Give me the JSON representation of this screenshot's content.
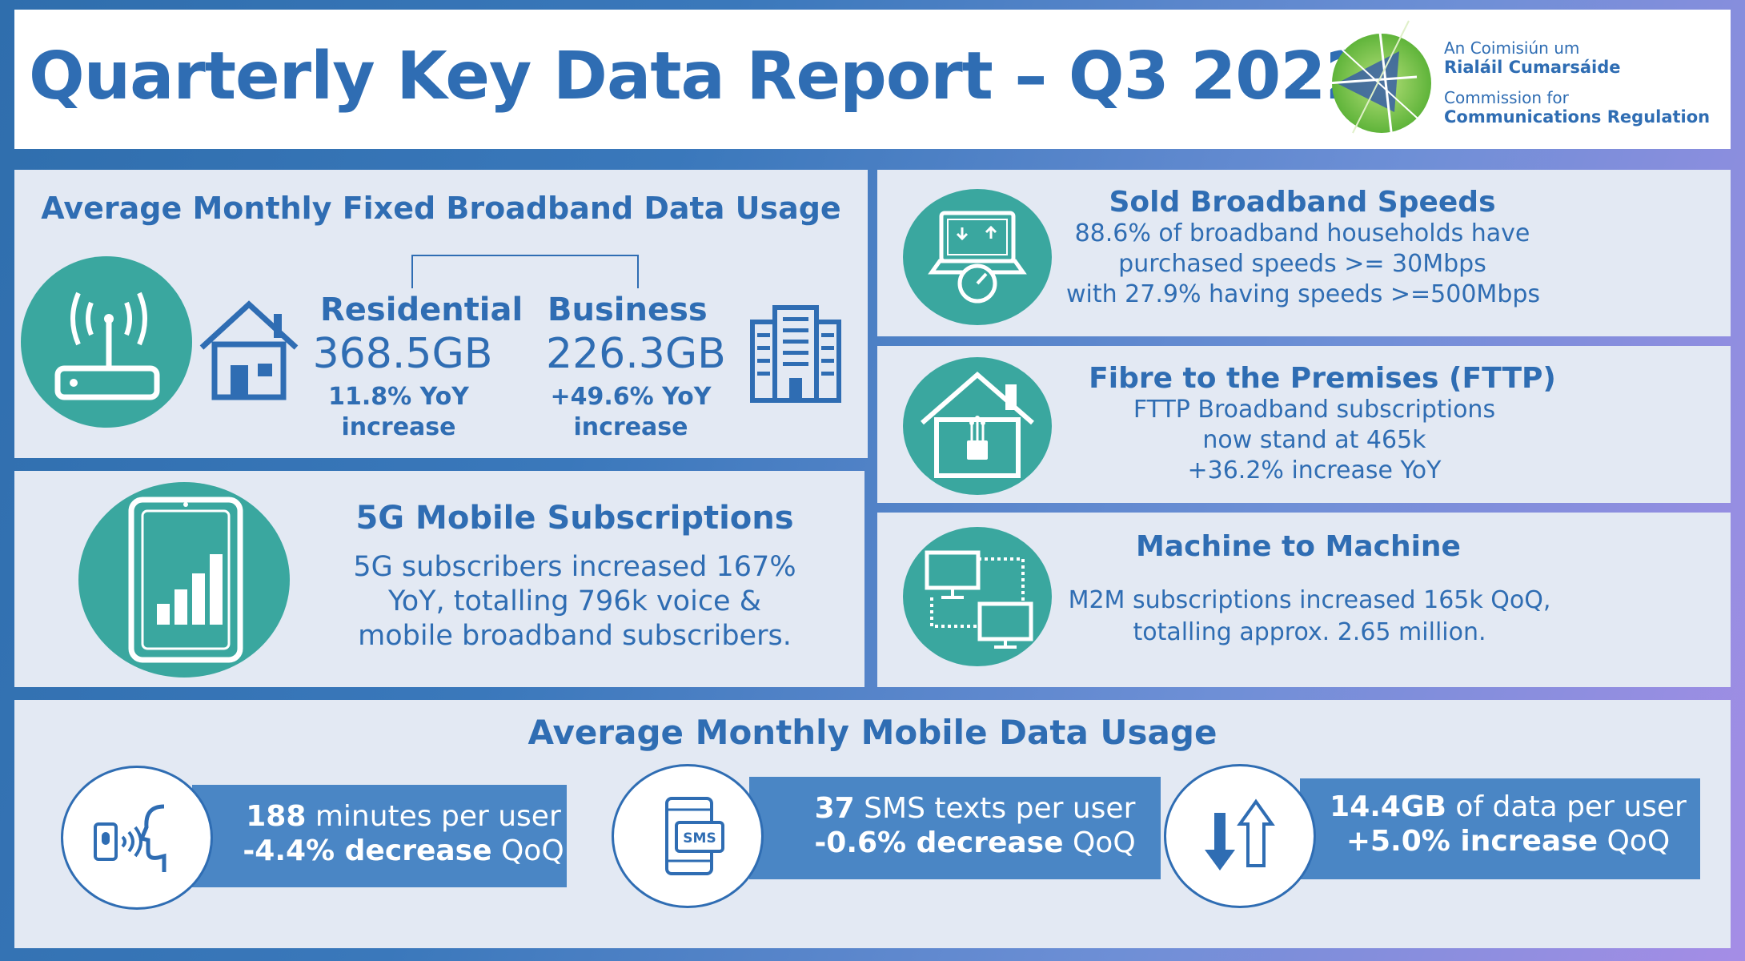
{
  "header": {
    "title": "Quarterly Key Data Report – Q3 2022",
    "logo": {
      "line1": "An Coimisiún um",
      "line2": "Rialáil Cumarsáide",
      "line3": "Commission for",
      "line4": "Communications Regulation"
    }
  },
  "fixed_broadband": {
    "title": "Average Monthly Fixed Broadband Data Usage",
    "residential": {
      "label": "Residential",
      "value": "368.5GB",
      "change_line1": "11.8% YoY",
      "change_line2": "increase"
    },
    "business": {
      "label": "Business",
      "value": "226.3GB",
      "change_line1": "+49.6% YoY",
      "change_line2": "increase"
    }
  },
  "mobile_5g": {
    "title": "5G Mobile Subscriptions",
    "line1": "5G subscribers increased 167%",
    "line2": "YoY, totalling 796k voice &",
    "line3": "mobile broadband subscribers."
  },
  "sold_speeds": {
    "title": "Sold Broadband Speeds",
    "line1": "88.6% of broadband households have",
    "line2": "purchased speeds >= 30Mbps",
    "line3": "with 27.9% having speeds >=500Mbps"
  },
  "fttp": {
    "title": "Fibre to the Premises (FTTP)",
    "line1": "FTTP Broadband subscriptions",
    "line2": "now stand at 465k",
    "line3": "+36.2% increase YoY"
  },
  "m2m": {
    "title": "Machine to Machine",
    "line1": "M2M subscriptions increased 165k QoQ,",
    "line2": "totalling approx. 2.65 million."
  },
  "mobile_usage": {
    "title": "Average Monthly Mobile Data Usage",
    "minutes": {
      "value": "188",
      "label": "minutes per user",
      "change": "-4.4% decrease",
      "period": "QoQ"
    },
    "sms": {
      "value": "37",
      "label": "SMS texts per user",
      "change": "-0.6% decrease",
      "period": "QoQ"
    },
    "data": {
      "value": "14.4GB",
      "label": "of data per user",
      "change": "+5.0% increase",
      "period": "QoQ",
      "sms_icon_text": "SMS"
    }
  },
  "colors": {
    "accent_blue": "#2f6db3",
    "teal": "#3aa79f",
    "panel_bg": "#e3e9f3",
    "stat_bar": "#4a86c5"
  }
}
